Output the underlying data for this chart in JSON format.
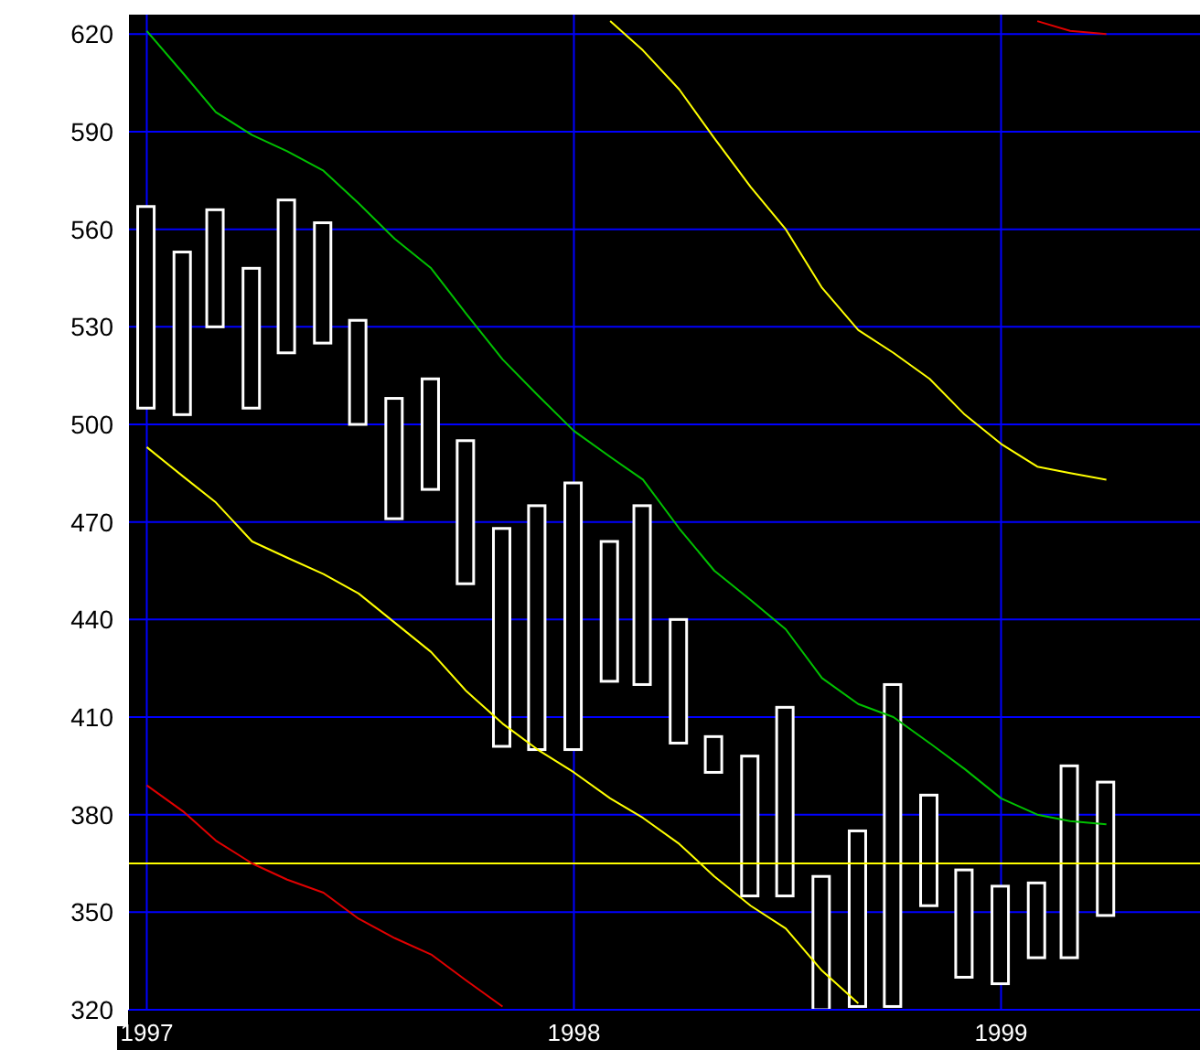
{
  "chart_data": {
    "type": "candlestick",
    "color": "#ffffff",
    "x": [
      "1997-01",
      "1997-02",
      "1997-03",
      "1997-04",
      "1997-05",
      "1997-06",
      "1997-07",
      "1997-08",
      "1997-09",
      "1997-10",
      "1997-11",
      "1997-12",
      "1998-01",
      "1998-02",
      "1998-03",
      "1998-04",
      "1998-05",
      "1998-06",
      "1998-07",
      "1998-08",
      "1998-09",
      "1998-10",
      "1998-11",
      "1998-12",
      "1999-01",
      "1999-02",
      "1999-03",
      "1999-04"
    ],
    "ohlc": [
      [
        505,
        567,
        505,
        567
      ],
      [
        503,
        553,
        503,
        553
      ],
      [
        530,
        566,
        530,
        566
      ],
      [
        505,
        548,
        505,
        548
      ],
      [
        522,
        569,
        522,
        569
      ],
      [
        525,
        562,
        525,
        562
      ],
      [
        500,
        532,
        500,
        532
      ],
      [
        471,
        508,
        471,
        508
      ],
      [
        480,
        514,
        480,
        514
      ],
      [
        451,
        495,
        451,
        495
      ],
      [
        401,
        468,
        401,
        468
      ],
      [
        400,
        475,
        400,
        475
      ],
      [
        400,
        482,
        400,
        482
      ],
      [
        421,
        464,
        421,
        464
      ],
      [
        420,
        475,
        420,
        475
      ],
      [
        402,
        440,
        402,
        440
      ],
      [
        393,
        404,
        393,
        404
      ],
      [
        355,
        398,
        355,
        398
      ],
      [
        355,
        413,
        355,
        413
      ],
      [
        320,
        361,
        320,
        361
      ],
      [
        321,
        375,
        321,
        375
      ],
      [
        321,
        420,
        321,
        420
      ],
      [
        352,
        386,
        352,
        386
      ],
      [
        330,
        363,
        330,
        363
      ],
      [
        328,
        358,
        328,
        358
      ],
      [
        336,
        359,
        336,
        359
      ],
      [
        336,
        395,
        336,
        395
      ],
      [
        349,
        390,
        349,
        390
      ]
    ],
    "series": [
      {
        "type": "line",
        "color": "#00c000",
        "values": [
          621,
          608,
          596,
          589,
          584,
          578,
          568,
          557,
          548,
          534,
          520,
          509,
          498,
          490,
          483,
          468,
          455,
          446,
          437,
          422,
          414,
          410,
          402,
          394,
          385,
          380,
          378,
          377
        ]
      },
      {
        "type": "line",
        "color": "#ffff00",
        "values": [
          null,
          null,
          null,
          null,
          null,
          null,
          null,
          null,
          null,
          null,
          null,
          null,
          null,
          624,
          615,
          603,
          588,
          573,
          560,
          542,
          529,
          522,
          514,
          503,
          494,
          487,
          485,
          483
        ]
      },
      {
        "type": "line",
        "color": "#ffff00",
        "values": [
          493,
          484,
          476,
          464,
          459,
          454,
          448,
          439,
          430,
          418,
          408,
          400,
          393,
          385,
          379,
          371,
          361,
          352,
          345,
          332,
          322,
          null,
          null,
          null,
          null,
          null,
          null,
          null
        ]
      },
      {
        "type": "line",
        "color": "#e00000",
        "values": [
          389,
          381,
          372,
          365,
          360,
          356,
          348,
          342,
          337,
          329,
          321,
          null,
          null,
          null,
          null,
          null,
          null,
          null,
          null,
          null,
          null,
          null,
          null,
          null,
          null,
          null,
          null,
          null
        ]
      },
      {
        "type": "line",
        "color": "#e00000",
        "values": [
          null,
          null,
          null,
          null,
          null,
          null,
          null,
          null,
          null,
          null,
          null,
          null,
          null,
          null,
          null,
          null,
          null,
          null,
          null,
          null,
          null,
          null,
          null,
          null,
          null,
          624,
          621,
          620
        ]
      }
    ],
    "xlim": [
      "1996-12-16",
      "1999-06-20"
    ],
    "xticks": [
      {
        "value": "1997-01",
        "label": "1997"
      },
      {
        "value": "1998-01",
        "label": "1998"
      },
      {
        "value": "1999-01",
        "label": "1999"
      }
    ],
    "ylim": [
      320,
      626
    ],
    "yticks": [
      320,
      350,
      380,
      410,
      440,
      470,
      500,
      530,
      560,
      590,
      620
    ],
    "ref_lines": [
      {
        "axis": "y",
        "value": 365,
        "color": "#ffff00"
      }
    ],
    "grid": true,
    "marker": "none",
    "line_style": "solid"
  }
}
